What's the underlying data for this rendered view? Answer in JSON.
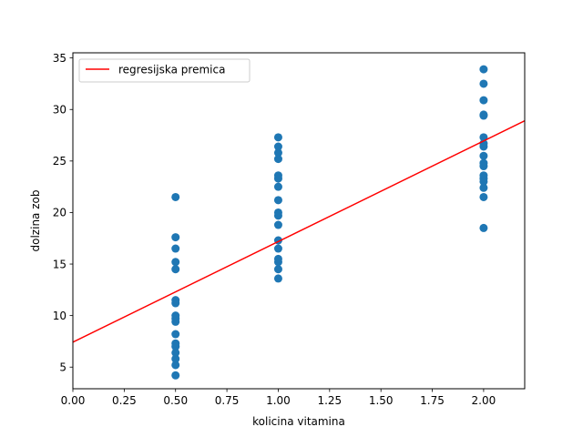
{
  "chart_data": {
    "type": "scatter",
    "xlabel": "kolicina vitamina",
    "ylabel": "dolzina zob",
    "xlim": [
      0.0,
      2.2
    ],
    "ylim": [
      2.9,
      35.5
    ],
    "xticks": [
      "0.00",
      "0.25",
      "0.50",
      "0.75",
      "1.00",
      "1.25",
      "1.50",
      "1.75",
      "2.00"
    ],
    "yticks": [
      "5",
      "10",
      "15",
      "20",
      "25",
      "30",
      "35"
    ],
    "grid": false,
    "legend_position": "top-left",
    "points_color": "#1f77b4",
    "points": [
      {
        "x": 0.5,
        "y": 4.2
      },
      {
        "x": 0.5,
        "y": 5.2
      },
      {
        "x": 0.5,
        "y": 5.8
      },
      {
        "x": 0.5,
        "y": 6.4
      },
      {
        "x": 0.5,
        "y": 7.0
      },
      {
        "x": 0.5,
        "y": 7.3
      },
      {
        "x": 0.5,
        "y": 8.2
      },
      {
        "x": 0.5,
        "y": 9.4
      },
      {
        "x": 0.5,
        "y": 9.7
      },
      {
        "x": 0.5,
        "y": 10.0
      },
      {
        "x": 0.5,
        "y": 11.2
      },
      {
        "x": 0.5,
        "y": 11.5
      },
      {
        "x": 0.5,
        "y": 14.5
      },
      {
        "x": 0.5,
        "y": 15.2
      },
      {
        "x": 0.5,
        "y": 16.5
      },
      {
        "x": 0.5,
        "y": 17.6
      },
      {
        "x": 0.5,
        "y": 21.5
      },
      {
        "x": 1.0,
        "y": 13.6
      },
      {
        "x": 1.0,
        "y": 14.5
      },
      {
        "x": 1.0,
        "y": 15.2
      },
      {
        "x": 1.0,
        "y": 15.5
      },
      {
        "x": 1.0,
        "y": 16.5
      },
      {
        "x": 1.0,
        "y": 17.3
      },
      {
        "x": 1.0,
        "y": 18.8
      },
      {
        "x": 1.0,
        "y": 19.7
      },
      {
        "x": 1.0,
        "y": 20.0
      },
      {
        "x": 1.0,
        "y": 21.2
      },
      {
        "x": 1.0,
        "y": 22.5
      },
      {
        "x": 1.0,
        "y": 23.3
      },
      {
        "x": 1.0,
        "y": 23.6
      },
      {
        "x": 1.0,
        "y": 25.2
      },
      {
        "x": 1.0,
        "y": 25.8
      },
      {
        "x": 1.0,
        "y": 26.4
      },
      {
        "x": 1.0,
        "y": 27.3
      },
      {
        "x": 2.0,
        "y": 18.5
      },
      {
        "x": 2.0,
        "y": 21.5
      },
      {
        "x": 2.0,
        "y": 22.4
      },
      {
        "x": 2.0,
        "y": 23.0
      },
      {
        "x": 2.0,
        "y": 23.3
      },
      {
        "x": 2.0,
        "y": 23.6
      },
      {
        "x": 2.0,
        "y": 24.5
      },
      {
        "x": 2.0,
        "y": 24.8
      },
      {
        "x": 2.0,
        "y": 25.5
      },
      {
        "x": 2.0,
        "y": 26.4
      },
      {
        "x": 2.0,
        "y": 26.7
      },
      {
        "x": 2.0,
        "y": 27.3
      },
      {
        "x": 2.0,
        "y": 29.4
      },
      {
        "x": 2.0,
        "y": 29.5
      },
      {
        "x": 2.0,
        "y": 30.9
      },
      {
        "x": 2.0,
        "y": 32.5
      },
      {
        "x": 2.0,
        "y": 33.9
      }
    ],
    "regression_line": {
      "name": "regresijska premica",
      "color": "#ff0000",
      "x": [
        0.0,
        2.2
      ],
      "y": [
        7.42,
        28.9
      ]
    }
  }
}
